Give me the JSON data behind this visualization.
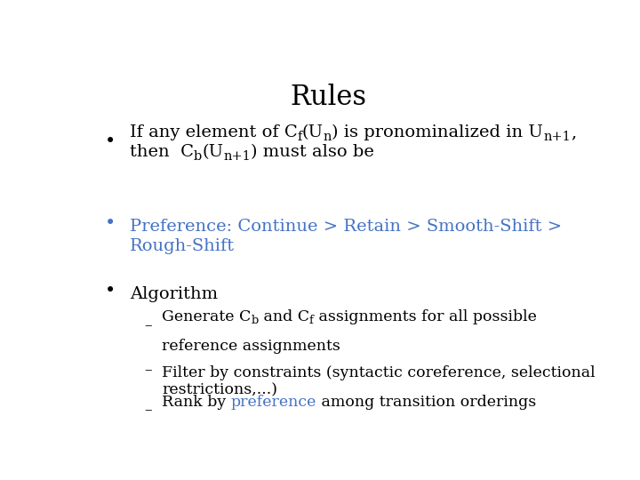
{
  "title": "Rules",
  "title_fontsize": 22,
  "background_color": "#ffffff",
  "black_color": "#000000",
  "blue_color": "#4472C4",
  "bullet2_line1": "Preference: Continue > Retain > Smooth-Shift >",
  "bullet2_line2": "Rough-Shift",
  "bullet3": "Algorithm",
  "sub1_line2": "reference assignments",
  "sub2_line1": "Filter by constraints (syntactic coreference, selectional",
  "sub2_line2": "restrictions,...)",
  "main_fontsize": 14,
  "sub_fontsize": 12.5
}
